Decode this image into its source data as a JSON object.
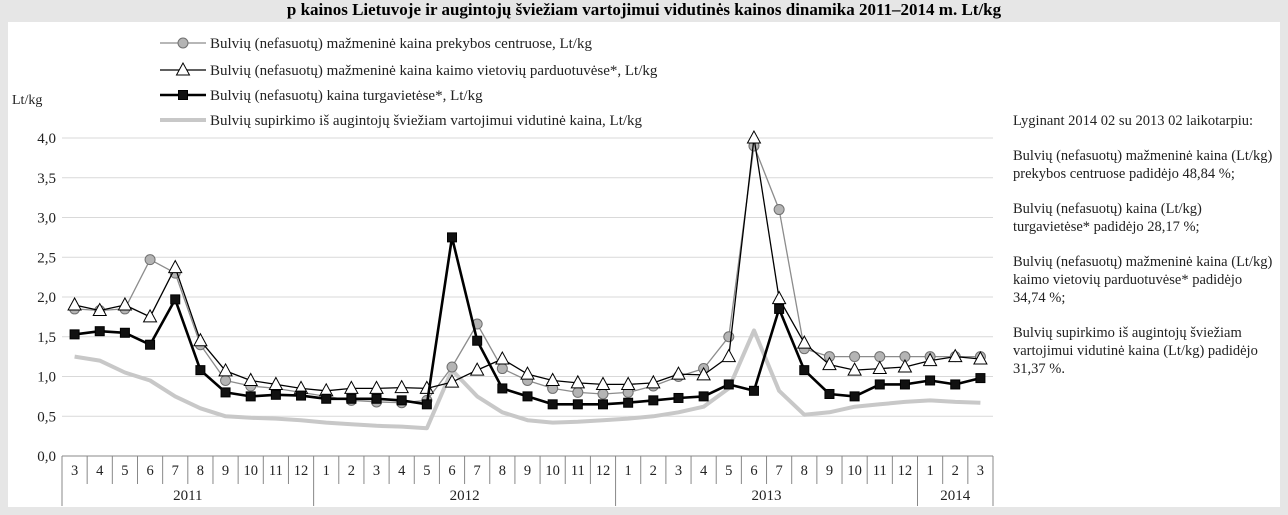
{
  "header": {
    "title": "p kainos Lietuvoje ir augintojų šviežiam vartojimui vidutinės kainos dinamika 2011–2014 m. Lt/kg"
  },
  "side_notes": {
    "intro": "Lyginant 2014 02 su 2013 02 laikotarpiu:",
    "note1": "Bulvių (nefasuotų) mažmeninė kaina (Lt/kg) prekybos centruose padidėjo 48,84 %;",
    "note2": "Bulvių (nefasuotų) kaina (Lt/kg) turgavietėse* padidėjo 28,17 %;",
    "note3": "Bulvių (nefasuotų) mažmeninė kaina (Lt/kg) kaimo vietovių parduotuvėse* padidėjo 34,74 %;",
    "note4": "Bulvių supirkimo iš augintojų šviežiam vartojimui vidutinė kaina (Lt/kg) padidėjo 31,37 %."
  },
  "chart_data": {
    "type": "line",
    "ylabel": "Lt/kg",
    "ylim": [
      0,
      4
    ],
    "yticks": [
      "0,0",
      "0,5",
      "1,0",
      "1,5",
      "2,0",
      "2,5",
      "3,0",
      "3,5",
      "4,0"
    ],
    "categories": [
      "3",
      "4",
      "5",
      "6",
      "7",
      "8",
      "9",
      "10",
      "11",
      "12",
      "1",
      "2",
      "3",
      "4",
      "5",
      "6",
      "7",
      "8",
      "9",
      "10",
      "11",
      "12",
      "1",
      "2",
      "3",
      "4",
      "5",
      "6",
      "7",
      "8",
      "9",
      "10",
      "11",
      "12",
      "1",
      "2",
      "3"
    ],
    "years": [
      {
        "label": "2011",
        "months": 10
      },
      {
        "label": "2012",
        "months": 12
      },
      {
        "label": "2013",
        "months": 12
      },
      {
        "label": "2014",
        "months": 3
      }
    ],
    "grid": true,
    "legend_position": "top-left",
    "series": [
      {
        "name": "Bulvių (nefasuotų) mažmeninė kaina prekybos centruose, Lt/kg",
        "color": "#8c8c8c",
        "marker": "circle",
        "values": [
          1.85,
          1.83,
          1.85,
          2.47,
          2.3,
          1.4,
          0.95,
          0.88,
          0.85,
          0.8,
          0.75,
          0.7,
          0.68,
          0.67,
          0.7,
          1.12,
          1.66,
          1.1,
          0.95,
          0.85,
          0.8,
          0.78,
          0.8,
          0.88,
          1.0,
          1.1,
          1.5,
          3.9,
          3.1,
          1.35,
          1.25,
          1.25,
          1.25,
          1.25,
          1.25,
          1.25,
          1.25
        ]
      },
      {
        "name": "Bulvių (nefasuotų) mažmeninė kaina kaimo vietovių parduotuvėse*, Lt/kg",
        "color": "#000000",
        "marker": "triangle",
        "values": [
          1.9,
          1.83,
          1.9,
          1.75,
          2.37,
          1.45,
          1.07,
          0.95,
          0.9,
          0.85,
          0.82,
          0.85,
          0.85,
          0.86,
          0.85,
          0.93,
          1.08,
          1.22,
          1.03,
          0.95,
          0.92,
          0.9,
          0.9,
          0.92,
          1.03,
          1.02,
          1.25,
          4.0,
          1.98,
          1.42,
          1.15,
          1.08,
          1.1,
          1.12,
          1.2,
          1.25,
          1.22
        ]
      },
      {
        "name": "Bulvių (nefasuotų) kaina turgavietėse*, Lt/kg",
        "color": "#000000",
        "marker": "square",
        "values": [
          1.53,
          1.57,
          1.55,
          1.4,
          1.97,
          1.08,
          0.8,
          0.75,
          0.77,
          0.76,
          0.72,
          0.72,
          0.72,
          0.7,
          0.65,
          2.75,
          1.45,
          0.85,
          0.75,
          0.65,
          0.65,
          0.65,
          0.67,
          0.7,
          0.73,
          0.75,
          0.9,
          0.82,
          1.85,
          1.08,
          0.78,
          0.75,
          0.9,
          0.9,
          0.95,
          0.9,
          0.98
        ]
      },
      {
        "name": "Bulvių supirkimo iš augintojų šviežiam vartojimui vidutinė kaina, Lt/kg",
        "color": "#c8c8c8",
        "marker": "none",
        "values": [
          1.25,
          1.2,
          1.05,
          0.95,
          0.75,
          0.6,
          0.5,
          0.48,
          0.47,
          0.45,
          0.42,
          0.4,
          0.38,
          0.37,
          0.35,
          1.08,
          0.75,
          0.55,
          0.45,
          0.42,
          0.43,
          0.45,
          0.47,
          0.5,
          0.55,
          0.62,
          0.85,
          1.58,
          0.82,
          0.52,
          0.55,
          0.62,
          0.65,
          0.68,
          0.7,
          0.68,
          0.67
        ]
      }
    ]
  }
}
